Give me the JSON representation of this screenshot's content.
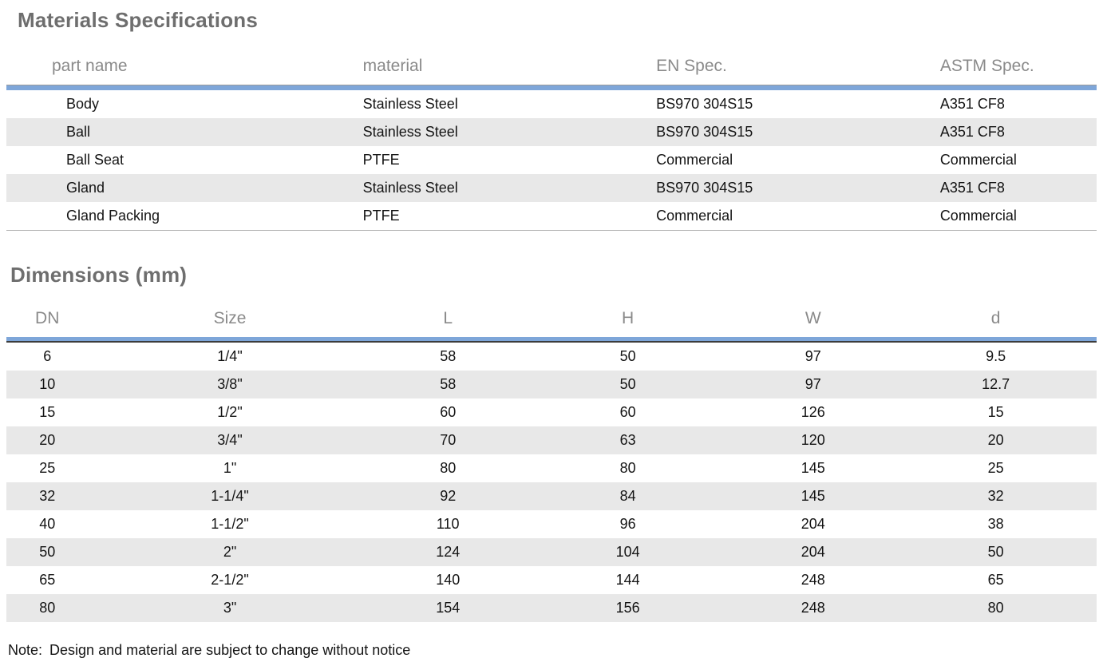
{
  "page": {
    "background": "#ffffff",
    "accent_color": "#7ea6d9",
    "stripe_color": "#e8e8e8",
    "title_color": "#6e6e6e",
    "header_text_color": "#8a8a8a",
    "body_text_color": "#141414"
  },
  "materials": {
    "title": "Materials Specifications",
    "columns": [
      "part name",
      "material",
      "EN Spec.",
      "ASTM Spec."
    ],
    "rows": [
      [
        "Body",
        "Stainless Steel",
        "BS970 304S15",
        "A351 CF8"
      ],
      [
        "Ball",
        "Stainless Steel",
        "BS970 304S15",
        "A351 CF8"
      ],
      [
        "Ball Seat",
        "PTFE",
        "Commercial",
        "Commercial"
      ],
      [
        "Gland",
        "Stainless Steel",
        "BS970 304S15",
        "A351 CF8"
      ],
      [
        "Gland Packing",
        "PTFE",
        "Commercial",
        "Commercial"
      ]
    ]
  },
  "dimensions": {
    "title": "Dimensions (mm)",
    "columns": [
      "DN",
      "Size",
      "L",
      "H",
      "W",
      "d"
    ],
    "rows": [
      [
        "6",
        "1/4\"",
        "58",
        "50",
        "97",
        "9.5"
      ],
      [
        "10",
        "3/8\"",
        "58",
        "50",
        "97",
        "12.7"
      ],
      [
        "15",
        "1/2\"",
        "60",
        "60",
        "126",
        "15"
      ],
      [
        "20",
        "3/4\"",
        "70",
        "63",
        "120",
        "20"
      ],
      [
        "25",
        "1\"",
        "80",
        "80",
        "145",
        "25"
      ],
      [
        "32",
        "1-1/4\"",
        "92",
        "84",
        "145",
        "32"
      ],
      [
        "40",
        "1-1/2\"",
        "110",
        "96",
        "204",
        "38"
      ],
      [
        "50",
        "2\"",
        "124",
        "104",
        "204",
        "50"
      ],
      [
        "65",
        "2-1/2\"",
        "140",
        "144",
        "248",
        "65"
      ],
      [
        "80",
        "3\"",
        "154",
        "156",
        "248",
        "80"
      ]
    ]
  },
  "note": {
    "label": "Note:",
    "text": "Design and material are subject to change without notice"
  }
}
